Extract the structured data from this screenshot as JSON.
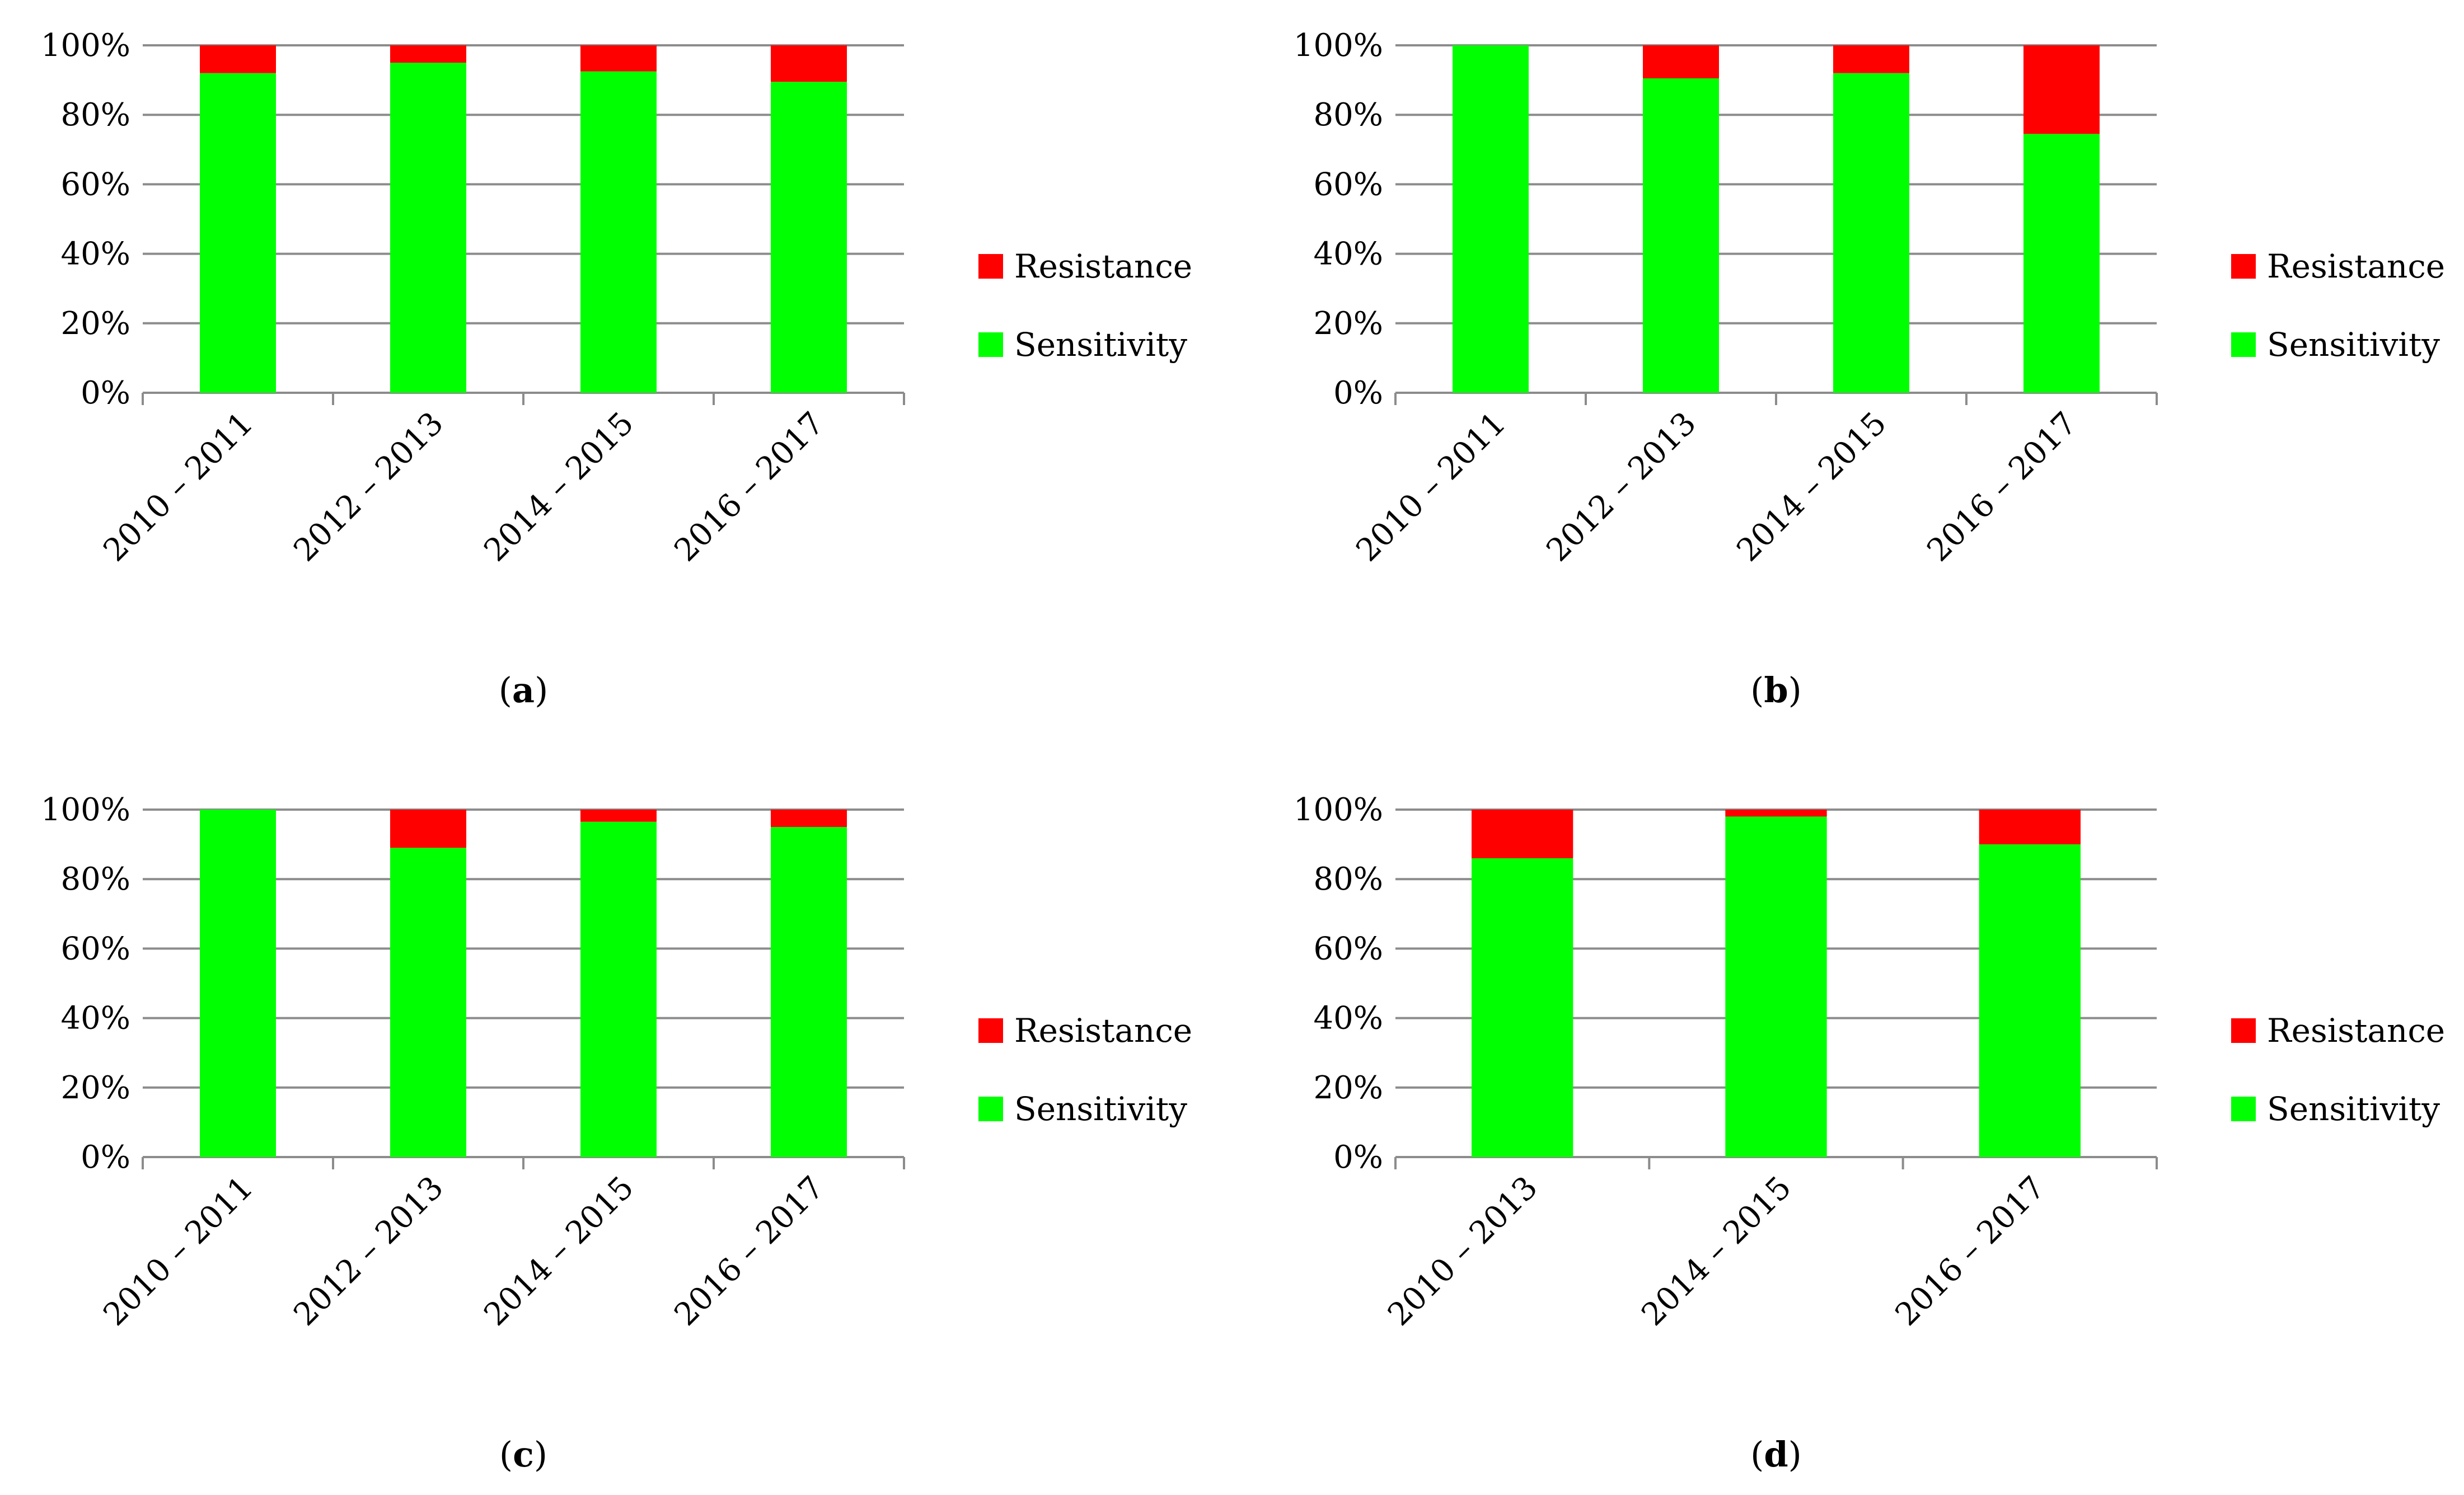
{
  "chart_data": [
    {
      "type": "bar",
      "stacked": true,
      "panel_label": "a",
      "categories": [
        "2010 – 2011",
        "2012 – 2013",
        "2014 – 2015",
        "2016 – 2017"
      ],
      "series": [
        {
          "name": "Sensitivity",
          "color": "#00ff00",
          "values": [
            92,
            95,
            92.5,
            89.5
          ]
        },
        {
          "name": "Resistance",
          "color": "#ff0000",
          "values": [
            8,
            5,
            7.5,
            10.5
          ]
        }
      ],
      "yticks": [
        "0%",
        "20%",
        "40%",
        "60%",
        "80%",
        "100%"
      ],
      "ylim": [
        0,
        100
      ],
      "legend_position": "right",
      "legend_order": [
        "Resistance",
        "Sensitivity"
      ],
      "grid": true
    },
    {
      "type": "bar",
      "stacked": true,
      "panel_label": "b",
      "categories": [
        "2010 – 2011",
        "2012 – 2013",
        "2014 – 2015",
        "2016 – 2017"
      ],
      "series": [
        {
          "name": "Sensitivity",
          "color": "#00ff00",
          "values": [
            100,
            90.5,
            92,
            74.5
          ]
        },
        {
          "name": "Resistance",
          "color": "#ff0000",
          "values": [
            0,
            9.5,
            8,
            25.5
          ]
        }
      ],
      "yticks": [
        "0%",
        "20%",
        "40%",
        "60%",
        "80%",
        "100%"
      ],
      "ylim": [
        0,
        100
      ],
      "legend_position": "right",
      "legend_order": [
        "Resistance",
        "Sensitivity"
      ],
      "grid": true
    },
    {
      "type": "bar",
      "stacked": true,
      "panel_label": "c",
      "categories": [
        "2010 – 2011",
        "2012 – 2013",
        "2014 – 2015",
        "2016 – 2017"
      ],
      "series": [
        {
          "name": "Sensitivity",
          "color": "#00ff00",
          "values": [
            100,
            89,
            96.5,
            95
          ]
        },
        {
          "name": "Resistance",
          "color": "#ff0000",
          "values": [
            0,
            11,
            3.5,
            5
          ]
        }
      ],
      "yticks": [
        "0%",
        "20%",
        "40%",
        "60%",
        "80%",
        "100%"
      ],
      "ylim": [
        0,
        100
      ],
      "legend_position": "right",
      "legend_order": [
        "Resistance",
        "Sensitivity"
      ],
      "grid": true
    },
    {
      "type": "bar",
      "stacked": true,
      "panel_label": "d",
      "categories": [
        "2010 – 2013",
        "2014 – 2015",
        "2016 – 2017"
      ],
      "series": [
        {
          "name": "Sensitivity",
          "color": "#00ff00",
          "values": [
            86,
            98,
            90
          ]
        },
        {
          "name": "Resistance",
          "color": "#ff0000",
          "values": [
            14,
            2,
            10
          ]
        }
      ],
      "yticks": [
        "0%",
        "20%",
        "40%",
        "60%",
        "80%",
        "100%"
      ],
      "ylim": [
        0,
        100
      ],
      "legend_position": "right",
      "legend_order": [
        "Resistance",
        "Sensitivity"
      ],
      "grid": true
    }
  ]
}
